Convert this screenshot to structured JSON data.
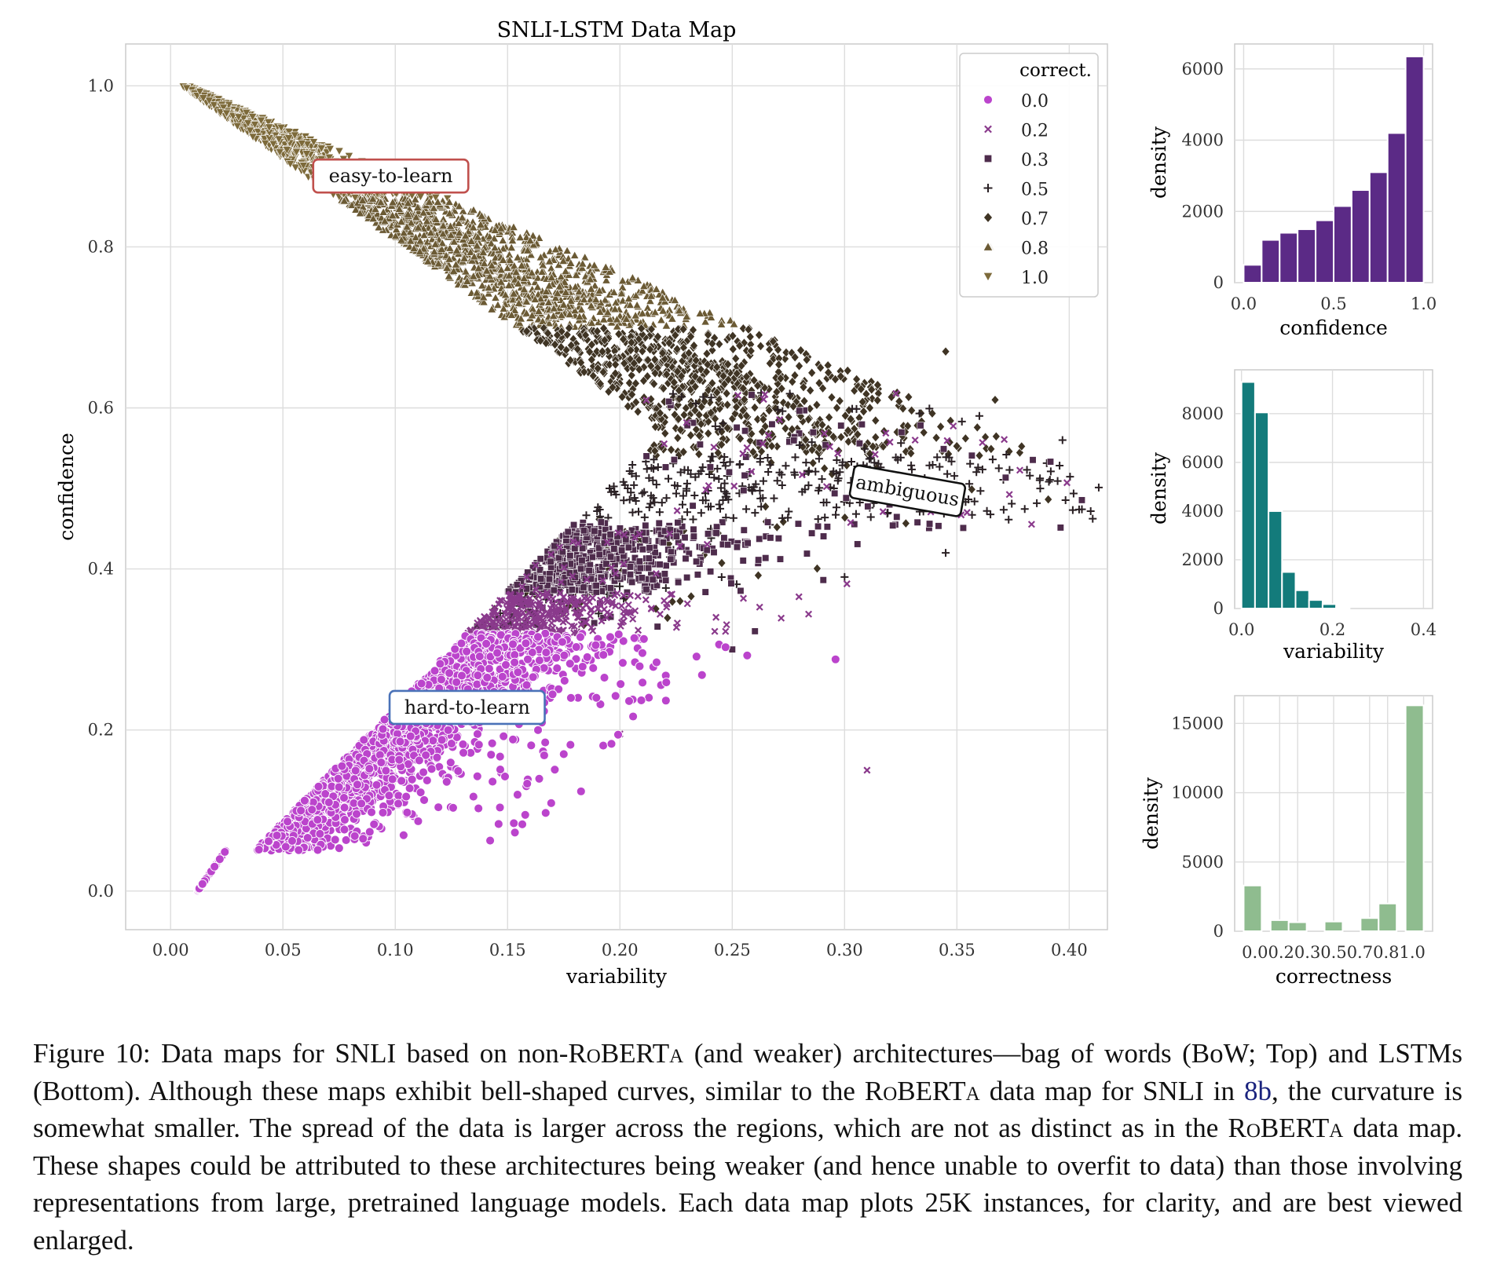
{
  "chart_data": [
    {
      "type": "scatter",
      "title": "SNLI-LSTM Data Map",
      "xlabel": "variability",
      "ylabel": "confidence",
      "xlim": [
        -0.02,
        0.417
      ],
      "ylim": [
        -0.048,
        1.052
      ],
      "xticks": [
        "0.00",
        "0.05",
        "0.10",
        "0.15",
        "0.20",
        "0.25",
        "0.30",
        "0.35",
        "0.40"
      ],
      "yticks": [
        "0.0",
        "0.2",
        "0.4",
        "0.6",
        "0.8",
        "1.0"
      ],
      "grid": true,
      "legend": {
        "title": "correct.",
        "placement": "top-right",
        "entries": [
          {
            "label": "0.0",
            "color": "#bb44cc",
            "marker": "circle"
          },
          {
            "label": "0.2",
            "color": "#8a3a8c",
            "marker": "x"
          },
          {
            "label": "0.3",
            "color": "#4e2c4c",
            "marker": "square"
          },
          {
            "label": "0.5",
            "color": "#2a2024",
            "marker": "plus"
          },
          {
            "label": "0.7",
            "color": "#3f3424",
            "marker": "diamond"
          },
          {
            "label": "0.8",
            "color": "#6b5a34",
            "marker": "triangle-up"
          },
          {
            "label": "1.0",
            "color": "#7d6a3a",
            "marker": "triangle-down"
          }
        ]
      },
      "annotations": [
        {
          "text": "easy-to-learn",
          "x": 0.098,
          "y": 0.888,
          "border": "#c0504d"
        },
        {
          "text": "ambiguous",
          "x": 0.328,
          "y": 0.497,
          "border": "#111111"
        },
        {
          "text": "hard-to-learn",
          "x": 0.132,
          "y": 0.228,
          "border": "#4a72b8"
        }
      ],
      "n_points": 25000
    },
    {
      "type": "bar",
      "xlabel": "confidence",
      "ylabel": "density",
      "color": "#5b2a86",
      "xticks": [
        "0.0",
        "0.5",
        "1.0"
      ],
      "yticks": [
        "0",
        "2000",
        "4000",
        "6000"
      ],
      "ylim": [
        0,
        6700
      ],
      "xlim": [
        0.0,
        1.0
      ],
      "values": [
        500,
        1200,
        1400,
        1500,
        1750,
        2150,
        2600,
        3100,
        4200,
        6350
      ]
    },
    {
      "type": "bar",
      "xlabel": "variability",
      "ylabel": "density",
      "color": "#137b7b",
      "xticks": [
        "0.0",
        "0.2",
        "0.4"
      ],
      "yticks": [
        "0",
        "2000",
        "4000",
        "6000",
        "8000"
      ],
      "ylim": [
        0,
        9800
      ],
      "xlim": [
        0.0,
        0.4
      ],
      "values": [
        9300,
        8050,
        4000,
        1500,
        750,
        350,
        180,
        60,
        0,
        0
      ]
    },
    {
      "type": "bar",
      "xlabel": "correctness",
      "ylabel": "density",
      "color": "#8fbc8f",
      "xticks": [
        "0.0",
        "0.2",
        "0.3",
        "0.5",
        "0.7",
        "0.8",
        "1.0"
      ],
      "tick_text": "0.00.20.30.50.70.81.0",
      "yticks": [
        "0",
        "5000",
        "10000",
        "15000"
      ],
      "ylim": [
        0,
        17000
      ],
      "categories": [
        "0.0",
        "0.2",
        "0.3",
        "0.5",
        "0.7",
        "0.8",
        "1.0"
      ],
      "values": [
        3300,
        800,
        650,
        700,
        950,
        2000,
        16300
      ]
    }
  ],
  "caption": {
    "text": "Figure 10: Data maps for SNLI based on non-RoBERTa (and weaker) architectures—bag of words (BoW; Top) and LSTMs (Bottom). Although these maps exhibit bell-shaped curves, similar to the RoBERTa data map for SNLI in 8b, the curvature is somewhat smaller. The spread of the data is larger across the regions, which are not as distinct as in the RoBERTa data map. These shapes could be attributed to these architectures being weaker (and hence unable to overfit to data) than those involving representations from large, pretrained language models. Each data map plots 25K instances, for clarity, and are best viewed enlarged.",
    "part1": "Figure 10: Data maps for SNLI based on non-",
    "roberta1": "RoBERTa",
    "part2": " (and weaker) architectures—bag of words (BoW; Top) and LSTMs (Bottom).  Although these maps exhibit bell-shaped curves, similar to the ",
    "roberta2": "RoBERTa",
    "part3": " data map for SNLI in ",
    "ref": "8b",
    "part4": ", the curvature is somewhat smaller. The spread of the data is larger across the regions, which are not as distinct as in the ",
    "roberta3": "RoBERTa",
    "part5": " data map. These shapes could be attributed to these architectures being weaker (and hence unable to overfit to data) than those involving representations from large, pretrained language models. Each data map plots 25K instances, for clarity, and are best viewed enlarged."
  }
}
